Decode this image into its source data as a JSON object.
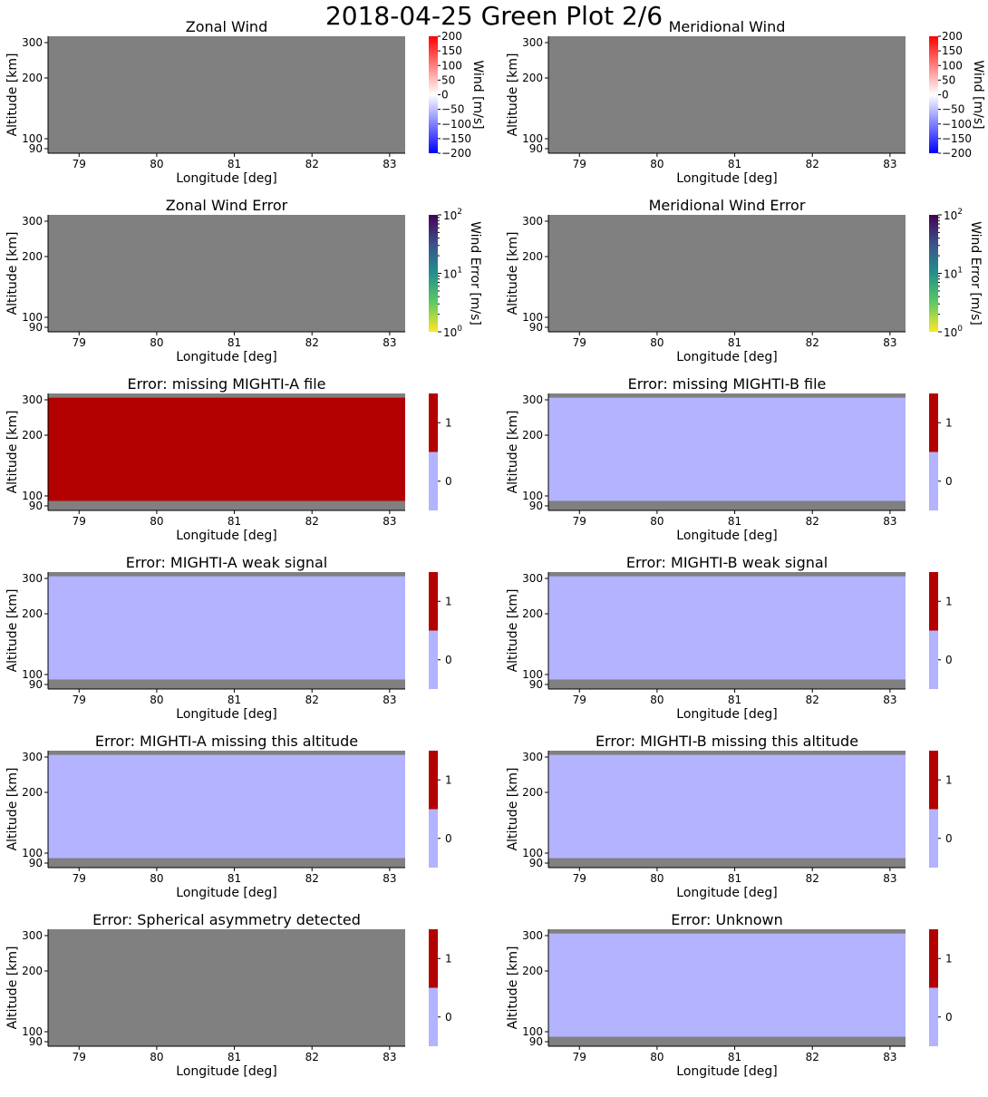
{
  "figure": {
    "title": "2018-04-25 Green Plot 2/6"
  },
  "colors": {
    "no_data": "#808080",
    "flag_on": "#b30000",
    "flag_off": "#b3b3ff"
  },
  "chart_data": [
    {
      "type": "heatmap",
      "title": "Zonal Wind",
      "xlabel": "Longitude [deg]",
      "ylabel": "Altitude [km]",
      "xticks": [
        "79",
        "80",
        "81",
        "82",
        "83"
      ],
      "yticks": [
        "300",
        "200",
        "100",
        "90"
      ],
      "xlim": [
        78.6,
        83.2
      ],
      "ylim": [
        88,
        315
      ],
      "fill": "no_data",
      "colorbar": {
        "type": "linear",
        "label": "Wind [m/s]",
        "colormap": "bwr",
        "range": [
          -200,
          200
        ],
        "ticks": [
          "200",
          "150",
          "100",
          "50",
          "0",
          "−50",
          "−100",
          "−150",
          "−200"
        ]
      }
    },
    {
      "type": "heatmap",
      "title": "Meridional Wind",
      "xlabel": "Longitude [deg]",
      "ylabel": "Altitude [km]",
      "xticks": [
        "79",
        "80",
        "81",
        "82",
        "83"
      ],
      "yticks": [
        "300",
        "200",
        "100",
        "90"
      ],
      "xlim": [
        78.6,
        83.2
      ],
      "ylim": [
        88,
        315
      ],
      "fill": "no_data",
      "colorbar": {
        "type": "linear",
        "label": "Wind [m/s]",
        "colormap": "bwr",
        "range": [
          -200,
          200
        ],
        "ticks": [
          "200",
          "150",
          "100",
          "50",
          "0",
          "−50",
          "−100",
          "−150",
          "−200"
        ]
      }
    },
    {
      "type": "heatmap",
      "title": "Zonal Wind Error",
      "xlabel": "Longitude [deg]",
      "ylabel": "Altitude [km]",
      "xticks": [
        "79",
        "80",
        "81",
        "82",
        "83"
      ],
      "yticks": [
        "300",
        "200",
        "100",
        "90"
      ],
      "xlim": [
        78.6,
        83.2
      ],
      "ylim": [
        88,
        315
      ],
      "fill": "no_data",
      "colorbar": {
        "type": "log",
        "label": "Wind Error [m/s]",
        "colormap": "viridis_r",
        "range": [
          1,
          100
        ],
        "ticks": [
          "10",
          "10",
          "10"
        ],
        "tick_exponents": [
          "2",
          "1",
          "0"
        ]
      }
    },
    {
      "type": "heatmap",
      "title": "Meridional Wind Error",
      "xlabel": "Longitude [deg]",
      "ylabel": "Altitude [km]",
      "xticks": [
        "79",
        "80",
        "81",
        "82",
        "83"
      ],
      "yticks": [
        "300",
        "200",
        "100",
        "90"
      ],
      "xlim": [
        78.6,
        83.2
      ],
      "ylim": [
        88,
        315
      ],
      "fill": "no_data",
      "colorbar": {
        "type": "log",
        "label": "Wind Error [m/s]",
        "colormap": "viridis_r",
        "range": [
          1,
          100
        ],
        "ticks": [
          "10",
          "10",
          "10"
        ],
        "tick_exponents": [
          "2",
          "1",
          "0"
        ]
      }
    },
    {
      "type": "heatmap",
      "title": "Error: missing MIGHTI-A file",
      "xlabel": "Longitude [deg]",
      "ylabel": "Altitude [km]",
      "xticks": [
        "79",
        "80",
        "81",
        "82",
        "83"
      ],
      "yticks": [
        "300",
        "200",
        "100",
        "90"
      ],
      "xlim": [
        78.6,
        83.2
      ],
      "ylim": [
        88,
        315
      ],
      "data_altitude_range": [
        95,
        305
      ],
      "value": 1,
      "colorbar": {
        "type": "flag",
        "label": "",
        "range": [
          -0.5,
          1.5
        ],
        "ticks": [
          "1",
          "0"
        ]
      }
    },
    {
      "type": "heatmap",
      "title": "Error: missing MIGHTI-B file",
      "xlabel": "Longitude [deg]",
      "ylabel": "Altitude [km]",
      "xticks": [
        "79",
        "80",
        "81",
        "82",
        "83"
      ],
      "yticks": [
        "300",
        "200",
        "100",
        "90"
      ],
      "xlim": [
        78.6,
        83.2
      ],
      "ylim": [
        88,
        315
      ],
      "data_altitude_range": [
        95,
        305
      ],
      "value": 0,
      "colorbar": {
        "type": "flag",
        "label": "",
        "range": [
          -0.5,
          1.5
        ],
        "ticks": [
          "1",
          "0"
        ]
      }
    },
    {
      "type": "heatmap",
      "title": "Error: MIGHTI-A weak signal",
      "xlabel": "Longitude [deg]",
      "ylabel": "Altitude [km]",
      "xticks": [
        "79",
        "80",
        "81",
        "82",
        "83"
      ],
      "yticks": [
        "300",
        "200",
        "100",
        "90"
      ],
      "xlim": [
        78.6,
        83.2
      ],
      "ylim": [
        88,
        315
      ],
      "data_altitude_range": [
        95,
        305
      ],
      "value": 0,
      "colorbar": {
        "type": "flag",
        "label": "",
        "range": [
          -0.5,
          1.5
        ],
        "ticks": [
          "1",
          "0"
        ]
      }
    },
    {
      "type": "heatmap",
      "title": "Error: MIGHTI-B weak signal",
      "xlabel": "Longitude [deg]",
      "ylabel": "Altitude [km]",
      "xticks": [
        "79",
        "80",
        "81",
        "82",
        "83"
      ],
      "yticks": [
        "300",
        "200",
        "100",
        "90"
      ],
      "xlim": [
        78.6,
        83.2
      ],
      "ylim": [
        88,
        315
      ],
      "data_altitude_range": [
        95,
        305
      ],
      "value": 0,
      "colorbar": {
        "type": "flag",
        "label": "",
        "range": [
          -0.5,
          1.5
        ],
        "ticks": [
          "1",
          "0"
        ]
      }
    },
    {
      "type": "heatmap",
      "title": "Error: MIGHTI-A missing this altitude",
      "xlabel": "Longitude [deg]",
      "ylabel": "Altitude [km]",
      "xticks": [
        "79",
        "80",
        "81",
        "82",
        "83"
      ],
      "yticks": [
        "300",
        "200",
        "100",
        "90"
      ],
      "xlim": [
        78.6,
        83.2
      ],
      "ylim": [
        88,
        315
      ],
      "data_altitude_range": [
        95,
        305
      ],
      "value": 0,
      "colorbar": {
        "type": "flag",
        "label": "",
        "range": [
          -0.5,
          1.5
        ],
        "ticks": [
          "1",
          "0"
        ]
      }
    },
    {
      "type": "heatmap",
      "title": "Error: MIGHTI-B missing this altitude",
      "xlabel": "Longitude [deg]",
      "ylabel": "Altitude [km]",
      "xticks": [
        "79",
        "80",
        "81",
        "82",
        "83"
      ],
      "yticks": [
        "300",
        "200",
        "100",
        "90"
      ],
      "xlim": [
        78.6,
        83.2
      ],
      "ylim": [
        88,
        315
      ],
      "data_altitude_range": [
        95,
        305
      ],
      "value": 0,
      "colorbar": {
        "type": "flag",
        "label": "",
        "range": [
          -0.5,
          1.5
        ],
        "ticks": [
          "1",
          "0"
        ]
      }
    },
    {
      "type": "heatmap",
      "title": "Error: Spherical asymmetry detected",
      "xlabel": "Longitude [deg]",
      "ylabel": "Altitude [km]",
      "xticks": [
        "79",
        "80",
        "81",
        "82",
        "83"
      ],
      "yticks": [
        "300",
        "200",
        "100",
        "90"
      ],
      "xlim": [
        78.6,
        83.2
      ],
      "ylim": [
        88,
        315
      ],
      "fill": "no_data",
      "colorbar": {
        "type": "flag",
        "label": "",
        "range": [
          -0.5,
          1.5
        ],
        "ticks": [
          "1",
          "0"
        ]
      }
    },
    {
      "type": "heatmap",
      "title": "Error: Unknown",
      "xlabel": "Longitude [deg]",
      "ylabel": "Altitude [km]",
      "xticks": [
        "79",
        "80",
        "81",
        "82",
        "83"
      ],
      "yticks": [
        "300",
        "200",
        "100",
        "90"
      ],
      "xlim": [
        78.6,
        83.2
      ],
      "ylim": [
        88,
        315
      ],
      "data_altitude_range": [
        95,
        305
      ],
      "value": 0,
      "colorbar": {
        "type": "flag",
        "label": "",
        "range": [
          -0.5,
          1.5
        ],
        "ticks": [
          "1",
          "0"
        ]
      }
    }
  ]
}
